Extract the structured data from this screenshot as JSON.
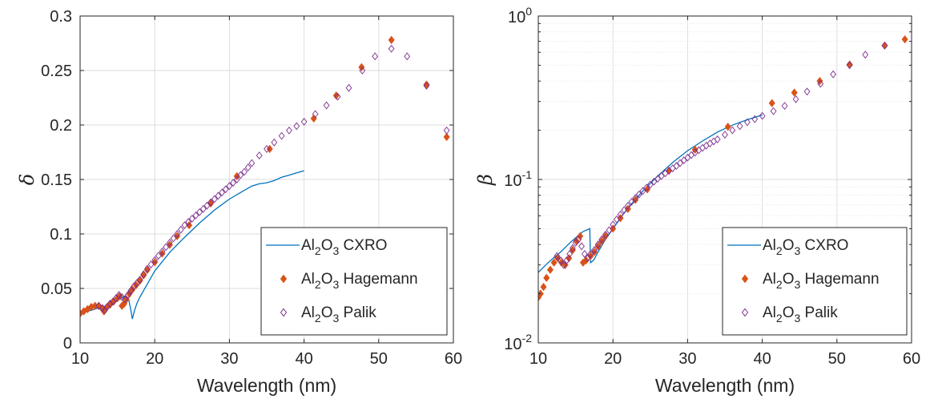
{
  "chart_data": [
    {
      "type": "line",
      "title": "",
      "xlabel": "Wavelength (nm)",
      "ylabel": "δ",
      "xlim": [
        10,
        60
      ],
      "ylim": [
        0,
        0.3
      ],
      "yscale": "linear",
      "grid": true,
      "legend_position": "bottom-right",
      "xticks": [
        10,
        20,
        30,
        40,
        50,
        60
      ],
      "xtick_labels": [
        "10",
        "20",
        "30",
        "40",
        "50",
        "60"
      ],
      "yticks": [
        0,
        0.05,
        0.1,
        0.15,
        0.2,
        0.25,
        0.3
      ],
      "ytick_labels": [
        "0",
        "0.05",
        "0.1",
        "0.15",
        "0.2",
        "0.25",
        "0.3"
      ],
      "series": [
        {
          "name": "Al2O3 CXRO",
          "legend": {
            "base1": "Al",
            "sub1": "2",
            "base2": "O",
            "sub2": "3",
            "suffix": " CXRO"
          },
          "style": "line",
          "color": "#0072BD",
          "x": [
            10,
            11,
            12,
            12.5,
            13,
            13.5,
            14,
            14.5,
            15,
            15.5,
            16,
            16.5,
            16.8,
            17,
            17.3,
            17.6,
            18,
            19,
            20,
            22,
            24,
            26,
            28,
            30,
            32,
            33,
            34,
            35,
            36,
            37,
            38,
            39,
            40
          ],
          "y": [
            0.027,
            0.029,
            0.031,
            0.032,
            0.033,
            0.034,
            0.035,
            0.037,
            0.039,
            0.041,
            0.043,
            0.04,
            0.03,
            0.022,
            0.03,
            0.036,
            0.042,
            0.054,
            0.066,
            0.083,
            0.097,
            0.11,
            0.122,
            0.132,
            0.14,
            0.144,
            0.146,
            0.147,
            0.149,
            0.152,
            0.154,
            0.156,
            0.158
          ]
        },
        {
          "name": "Al2O3 Hagemann",
          "legend": {
            "base1": "Al",
            "sub1": "2",
            "base2": "O",
            "sub2": "3",
            "suffix": " Hagemann"
          },
          "style": "filled-diamond",
          "color": "#D95319",
          "x": [
            10,
            10.5,
            11,
            11.5,
            12,
            12.5,
            13,
            13.2,
            13.5,
            14,
            14.5,
            15,
            15.3,
            15.6,
            15.9,
            16.2,
            16.6,
            17,
            17.5,
            18,
            18.5,
            19,
            20,
            21,
            22,
            23,
            24.6,
            27.5,
            31,
            35.4,
            41.3,
            44.3,
            47.7,
            51.7,
            56.4,
            59.1
          ],
          "y": [
            0.027,
            0.029,
            0.031,
            0.033,
            0.034,
            0.034,
            0.031,
            0.029,
            0.032,
            0.035,
            0.038,
            0.041,
            0.043,
            0.034,
            0.036,
            0.04,
            0.045,
            0.049,
            0.053,
            0.057,
            0.062,
            0.067,
            0.074,
            0.082,
            0.09,
            0.098,
            0.108,
            0.128,
            0.153,
            0.178,
            0.206,
            0.227,
            0.253,
            0.278,
            0.237,
            0.189
          ]
        },
        {
          "name": "Al2O3 Palik",
          "legend": {
            "base1": "Al",
            "sub1": "2",
            "base2": "O",
            "sub2": "3",
            "suffix": " Palik"
          },
          "style": "open-diamond",
          "color": "#7E2F8E",
          "x": [
            12.5,
            13,
            13.3,
            13.6,
            14,
            14.4,
            14.8,
            15.2,
            15.6,
            16,
            16.4,
            16.8,
            17.2,
            17.6,
            18,
            18.5,
            19,
            19.5,
            20,
            20.5,
            21,
            21.5,
            22,
            22.5,
            23,
            23.5,
            24,
            24.5,
            25,
            25.5,
            26,
            26.5,
            27,
            27.5,
            28,
            28.5,
            29,
            29.5,
            30,
            30.5,
            31,
            31.5,
            32,
            32.5,
            33,
            34,
            35,
            36,
            37,
            38,
            39,
            40,
            41.5,
            43,
            44.5,
            46,
            47.8,
            49.5,
            51.7,
            53.8,
            56.4,
            59.1
          ],
          "y": [
            0.034,
            0.032,
            0.03,
            0.033,
            0.036,
            0.038,
            0.041,
            0.044,
            0.042,
            0.04,
            0.044,
            0.048,
            0.052,
            0.055,
            0.058,
            0.063,
            0.068,
            0.072,
            0.076,
            0.08,
            0.084,
            0.088,
            0.092,
            0.096,
            0.1,
            0.104,
            0.108,
            0.111,
            0.114,
            0.117,
            0.12,
            0.123,
            0.126,
            0.129,
            0.132,
            0.135,
            0.138,
            0.141,
            0.144,
            0.147,
            0.15,
            0.154,
            0.157,
            0.161,
            0.165,
            0.172,
            0.178,
            0.184,
            0.19,
            0.195,
            0.199,
            0.203,
            0.21,
            0.218,
            0.226,
            0.234,
            0.25,
            0.263,
            0.27,
            0.263,
            0.236,
            0.195
          ]
        }
      ]
    },
    {
      "type": "line",
      "title": "",
      "xlabel": "Wavelength (nm)",
      "ylabel": "β",
      "xlim": [
        10,
        60
      ],
      "ylim": [
        0.01,
        1
      ],
      "yscale": "log",
      "grid": true,
      "legend_position": "bottom-right",
      "xticks": [
        10,
        20,
        30,
        40,
        50,
        60
      ],
      "xtick_labels": [
        "10",
        "20",
        "30",
        "40",
        "50",
        "60"
      ],
      "yticks": [
        0.01,
        0.1,
        1
      ],
      "ytick_labels": [
        {
          "base": "10",
          "exp": "-2"
        },
        {
          "base": "10",
          "exp": "-1"
        },
        {
          "base": "10",
          "exp": "0"
        }
      ],
      "series": [
        {
          "name": "Al2O3 CXRO",
          "legend": {
            "base1": "Al",
            "sub1": "2",
            "base2": "O",
            "sub2": "3",
            "suffix": " CXRO"
          },
          "style": "line",
          "color": "#0072BD",
          "x": [
            10,
            11,
            12,
            13,
            14,
            15,
            16,
            16.9,
            17,
            17.4,
            18,
            19,
            20,
            22,
            24,
            26,
            28,
            30,
            32,
            34,
            36,
            38,
            40
          ],
          "y": [
            0.027,
            0.03,
            0.033,
            0.036,
            0.04,
            0.044,
            0.048,
            0.05,
            0.031,
            0.032,
            0.036,
            0.043,
            0.05,
            0.067,
            0.085,
            0.105,
            0.127,
            0.15,
            0.172,
            0.195,
            0.215,
            0.232,
            0.248
          ]
        },
        {
          "name": "Al2O3 Hagemann",
          "legend": {
            "base1": "Al",
            "sub1": "2",
            "base2": "O",
            "sub2": "3",
            "suffix": " Hagemann"
          },
          "style": "filled-diamond",
          "color": "#D95319",
          "x": [
            10,
            10.3,
            10.7,
            11.1,
            11.6,
            12.1,
            12.6,
            13.1,
            13.6,
            14.1,
            14.6,
            15.1,
            15.6,
            16,
            16.4,
            17,
            17.5,
            18,
            18.5,
            19,
            20,
            21,
            22,
            23,
            24.6,
            27.5,
            31,
            35.4,
            41.3,
            44.3,
            47.7,
            51.7,
            56.4,
            59.1
          ],
          "y": [
            0.019,
            0.02,
            0.022,
            0.025,
            0.028,
            0.031,
            0.033,
            0.031,
            0.03,
            0.033,
            0.037,
            0.042,
            0.045,
            0.031,
            0.032,
            0.034,
            0.036,
            0.039,
            0.042,
            0.045,
            0.05,
            0.058,
            0.066,
            0.075,
            0.087,
            0.113,
            0.152,
            0.21,
            0.293,
            0.34,
            0.4,
            0.505,
            0.66,
            0.72
          ]
        },
        {
          "name": "Al2O3 Palik",
          "legend": {
            "base1": "Al",
            "sub1": "2",
            "base2": "O",
            "sub2": "3",
            "suffix": " Palik"
          },
          "style": "open-diamond",
          "color": "#7E2F8E",
          "x": [
            12.5,
            13,
            13.4,
            13.8,
            14.2,
            14.6,
            15,
            15.4,
            15.8,
            16.2,
            16.6,
            17,
            17.5,
            18,
            18.5,
            19,
            19.5,
            20,
            20.5,
            21,
            21.5,
            22,
            22.5,
            23,
            23.5,
            24,
            24.5,
            25,
            25.5,
            26,
            26.5,
            27,
            27.5,
            28,
            28.5,
            29,
            29.5,
            30,
            30.5,
            31,
            31.5,
            32,
            32.5,
            33,
            33.5,
            34,
            35,
            36,
            37,
            38,
            39,
            40,
            41.5,
            43,
            44.5,
            46,
            47.8,
            49.5,
            51.7,
            53.8,
            56.4
          ],
          "y": [
            0.034,
            0.032,
            0.03,
            0.032,
            0.035,
            0.038,
            0.041,
            0.043,
            0.039,
            0.035,
            0.033,
            0.035,
            0.037,
            0.04,
            0.043,
            0.046,
            0.049,
            0.053,
            0.057,
            0.061,
            0.065,
            0.069,
            0.073,
            0.077,
            0.081,
            0.085,
            0.089,
            0.093,
            0.097,
            0.101,
            0.105,
            0.109,
            0.113,
            0.117,
            0.121,
            0.126,
            0.131,
            0.136,
            0.141,
            0.146,
            0.151,
            0.156,
            0.161,
            0.166,
            0.171,
            0.176,
            0.188,
            0.2,
            0.212,
            0.224,
            0.234,
            0.245,
            0.262,
            0.282,
            0.31,
            0.345,
            0.385,
            0.44,
            0.5,
            0.58,
            0.66
          ]
        }
      ]
    }
  ]
}
